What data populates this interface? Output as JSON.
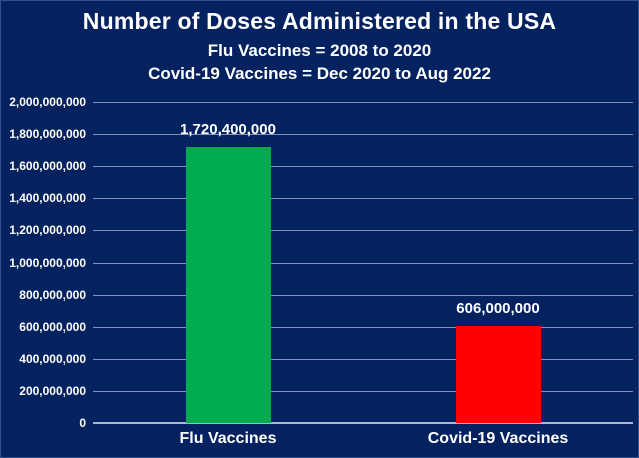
{
  "header": {
    "title": "Number of Doses Administered in the USA",
    "subtitle_flu": "Flu Vaccines = 2008 to 2020",
    "subtitle_covid": "Covid-19 Vaccines = Dec 2020 to Aug 2022"
  },
  "colors": {
    "background": "#042260",
    "border": "#31508E",
    "gridline": "#8294B4",
    "axis_line": "#A9B7CF",
    "text": "#FFFFFF",
    "flu_bar": "#00AC4E",
    "covid_bar": "#FF0000"
  },
  "chart_data": {
    "type": "bar",
    "title": "Number of Doses Administered in the USA",
    "subtitles": [
      "Flu Vaccines = 2008 to 2020",
      "Covid-19 Vaccines = Dec 2020 to Aug 2022"
    ],
    "categories": [
      "Flu Vaccines",
      "Covid-19 Vaccines"
    ],
    "values": [
      1720400000,
      606000000
    ],
    "value_labels": [
      "1,720,400,000",
      "606,000,000"
    ],
    "bar_colors": [
      "#00AC4E",
      "#FF0000"
    ],
    "xlabel": "",
    "ylabel": "",
    "ylim": [
      0,
      2000000000
    ],
    "ytick_values": [
      0,
      200000000,
      400000000,
      600000000,
      800000000,
      1000000000,
      1200000000,
      1400000000,
      1600000000,
      1800000000,
      2000000000
    ],
    "ytick_labels": [
      "0",
      "200,000,000",
      "400,000,000",
      "600,000,000",
      "800,000,000",
      "1,000,000,000",
      "1,200,000,000",
      "1,400,000,000",
      "1,600,000,000",
      "1,800,000,000",
      "2,000,000,000"
    ],
    "grid": true,
    "legend": false
  }
}
